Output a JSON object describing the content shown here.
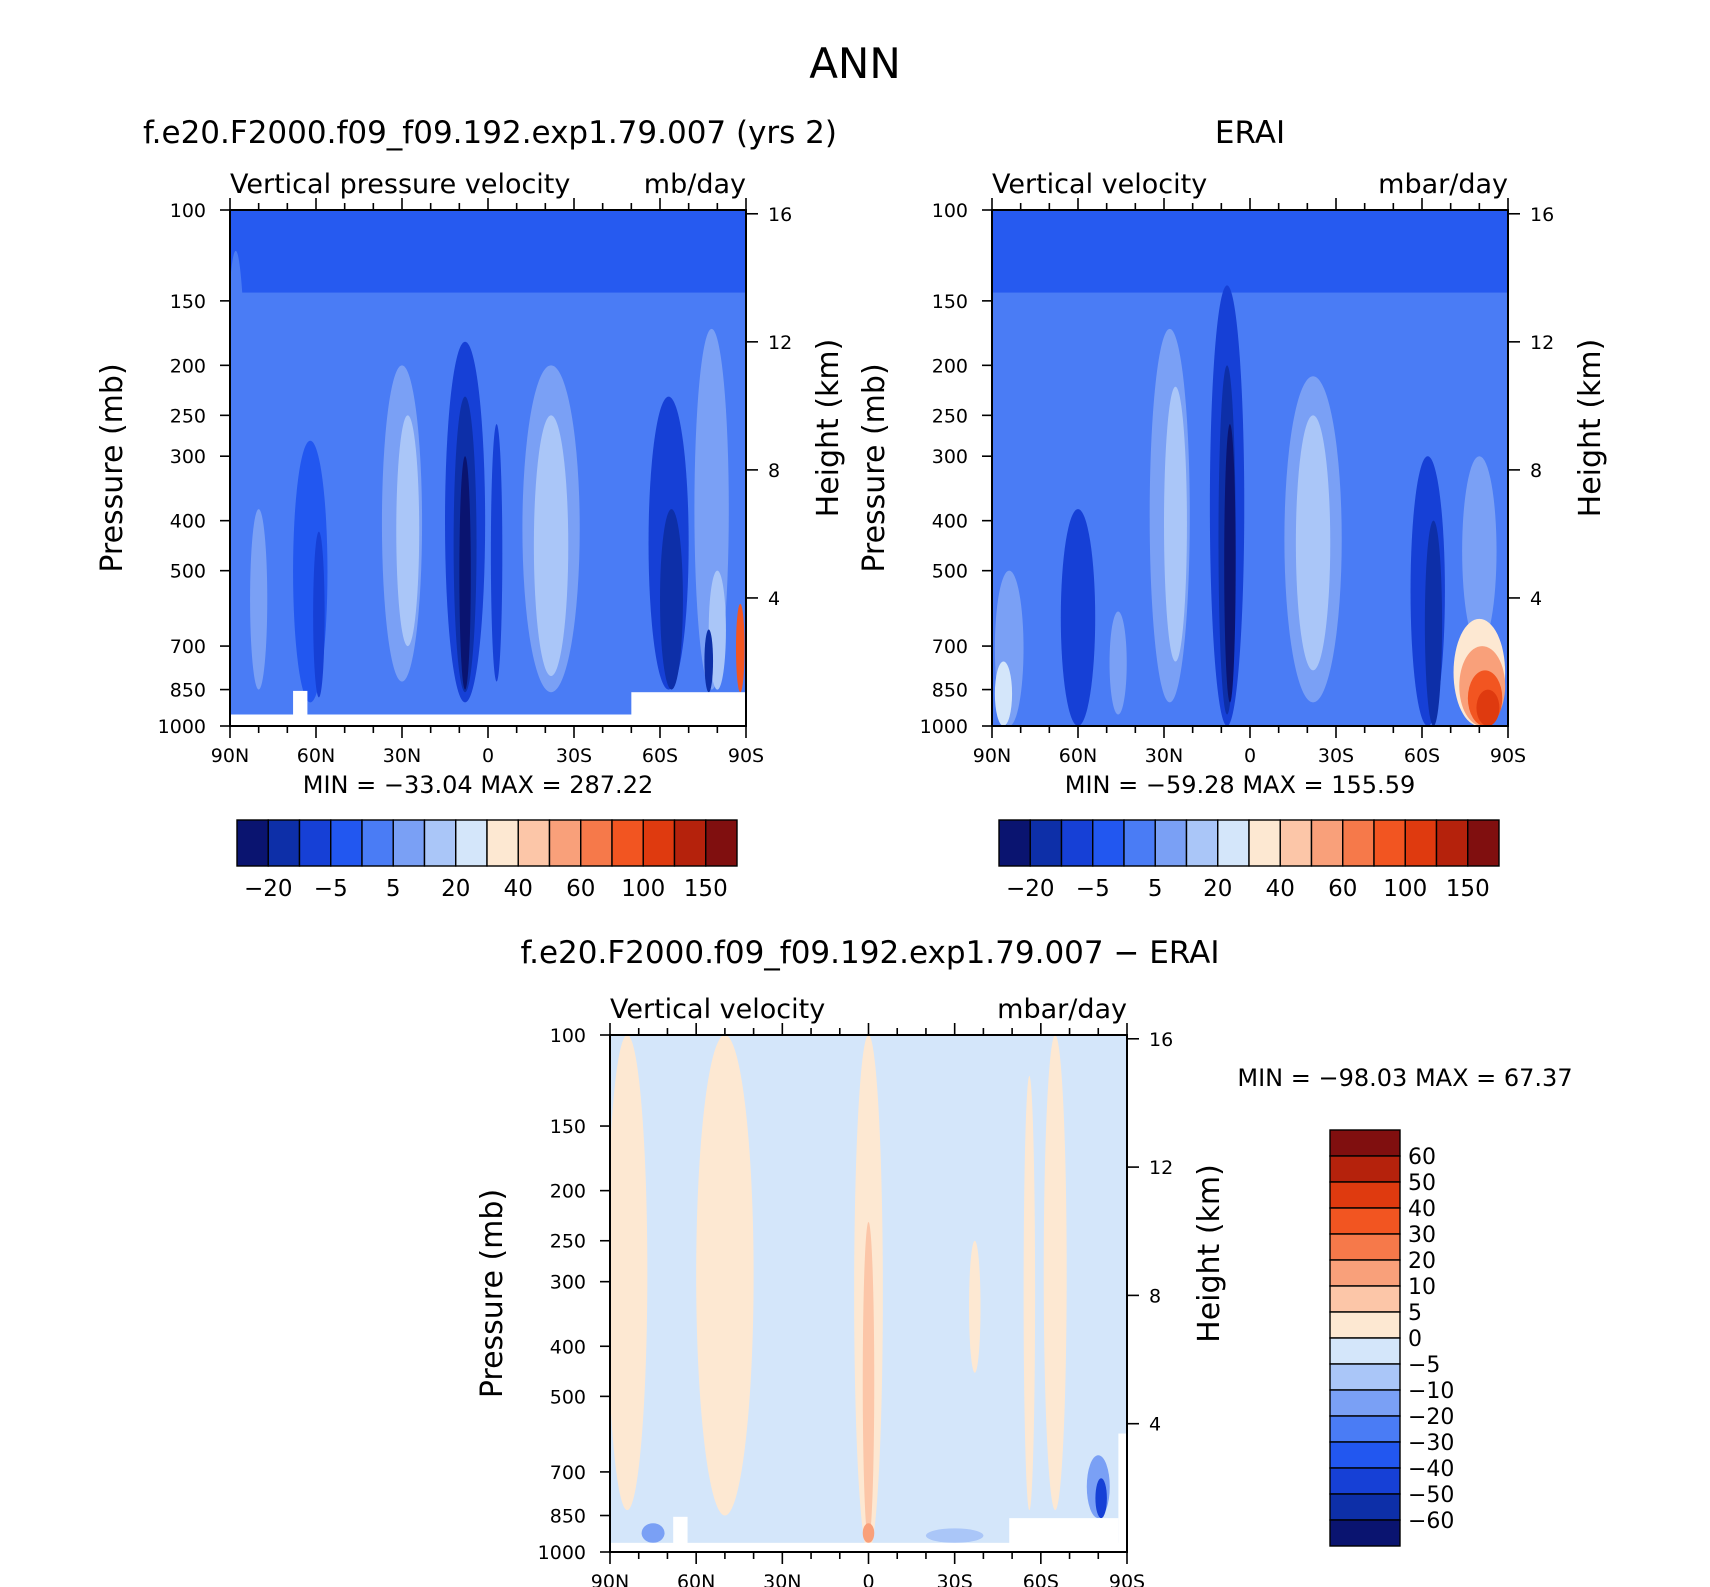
{
  "page_title": "ANN",
  "colors": {
    "palette_main": [
      "#0a1470",
      "#0d2fa8",
      "#1640d6",
      "#2257f0",
      "#4a7cf5",
      "#7aa0f5",
      "#aac6f8",
      "#d4e6fa",
      "#fde8d2",
      "#fcc6a8",
      "#f9a07a",
      "#f6794a",
      "#f25521",
      "#df3a0f",
      "#b5220c",
      "#800f0f"
    ],
    "palette_diff": [
      "#0a1470",
      "#0d2fa8",
      "#1640d6",
      "#2257f0",
      "#4a7cf5",
      "#7aa0f5",
      "#aac6f8",
      "#d4e6fa",
      "#fde8d2",
      "#fcc6a8",
      "#f9a07a",
      "#f6794a",
      "#f25521",
      "#df3a0f",
      "#b5220c",
      "#800f0f"
    ],
    "background_fill": "#4a7cf5",
    "missing": "#ffffff"
  },
  "chart_data": [
    {
      "id": "model",
      "type": "heatmap",
      "title": "f.e20.F2000.f09_f09.192.exp1.79.007 (yrs 2)",
      "left_string": "Vertical pressure velocity",
      "right_string": "mb/day",
      "xlabel": "",
      "ylabel": "Pressure (mb)",
      "y2label": "Height (km)",
      "xticks": [
        "90N",
        "60N",
        "30N",
        "0",
        "30S",
        "60S",
        "90S"
      ],
      "x_lat": [
        90,
        60,
        30,
        0,
        -30,
        -60,
        -90
      ],
      "yticks": [
        100,
        150,
        200,
        250,
        300,
        400,
        500,
        700,
        850,
        1000
      ],
      "y2ticks": [
        16,
        12,
        8,
        4
      ],
      "ylim": [
        1000,
        100
      ],
      "min_max": "MIN = −33.04   MAX = 287.22",
      "colorbar_labels": [
        "−20",
        "−5",
        "5",
        "20",
        "40",
        "60",
        "100",
        "150"
      ],
      "colorbar_levels": [
        -20,
        -10,
        -5,
        0,
        5,
        10,
        20,
        30,
        40,
        50,
        60,
        80,
        100,
        120,
        150
      ],
      "features": [
        {
          "lat": 88,
          "halfwidth": 4,
          "p_top": 120,
          "p_bottom": 1000,
          "level": 4
        },
        {
          "lat": 80,
          "halfwidth": 3,
          "p_top": 380,
          "p_bottom": 850,
          "level": 5
        },
        {
          "lat": 62,
          "halfwidth": 6,
          "p_top": 280,
          "p_bottom": 900,
          "level": 3
        },
        {
          "lat": 59,
          "halfwidth": 2,
          "p_top": 420,
          "p_bottom": 880,
          "level": 2
        },
        {
          "lat": 45,
          "halfwidth": 3,
          "p_top": 300,
          "p_bottom": 800,
          "level": 4
        },
        {
          "lat": 30,
          "halfwidth": 7,
          "p_top": 200,
          "p_bottom": 820,
          "level": 5
        },
        {
          "lat": 28,
          "halfwidth": 4,
          "p_top": 250,
          "p_bottom": 700,
          "level": 6
        },
        {
          "lat": 8,
          "halfwidth": 7,
          "p_top": 180,
          "p_bottom": 900,
          "level": 2
        },
        {
          "lat": 8,
          "halfwidth": 4,
          "p_top": 230,
          "p_bottom": 860,
          "level": 1
        },
        {
          "lat": 8,
          "halfwidth": 2,
          "p_top": 300,
          "p_bottom": 850,
          "level": 0
        },
        {
          "lat": -3,
          "halfwidth": 2,
          "p_top": 260,
          "p_bottom": 820,
          "level": 2
        },
        {
          "lat": -22,
          "halfwidth": 10,
          "p_top": 200,
          "p_bottom": 860,
          "level": 5
        },
        {
          "lat": -22,
          "halfwidth": 6,
          "p_top": 250,
          "p_bottom": 800,
          "level": 6
        },
        {
          "lat": -63,
          "halfwidth": 7,
          "p_top": 230,
          "p_bottom": 850,
          "level": 2
        },
        {
          "lat": -64,
          "halfwidth": 4,
          "p_top": 380,
          "p_bottom": 850,
          "level": 1
        },
        {
          "lat": -78,
          "halfwidth": 6,
          "p_top": 170,
          "p_bottom": 850,
          "level": 5
        },
        {
          "lat": -80,
          "halfwidth": 3,
          "p_top": 500,
          "p_bottom": 850,
          "level": 6
        },
        {
          "lat": -77,
          "halfwidth": 1.5,
          "p_top": 650,
          "p_bottom": 860,
          "level": 1
        },
        {
          "lat": -88,
          "halfwidth": 1.5,
          "p_top": 580,
          "p_bottom": 860,
          "level": 12
        }
      ],
      "missing_regions": [
        {
          "lat_from": 90,
          "lat_to": -90,
          "p_from": 950,
          "p_to": 1000
        },
        {
          "lat_from": 68,
          "lat_to": 63,
          "p_from": 855,
          "p_to": 1000
        },
        {
          "lat_from": -50,
          "lat_to": -90,
          "p_from": 860,
          "p_to": 1000
        }
      ]
    },
    {
      "id": "obs",
      "type": "heatmap",
      "title": "ERAI",
      "left_string": "Vertical velocity",
      "right_string": "mbar/day",
      "ylabel": "Pressure (mb)",
      "y2label": "Height (km)",
      "xticks": [
        "90N",
        "60N",
        "30N",
        "0",
        "30S",
        "60S",
        "90S"
      ],
      "x_lat": [
        90,
        60,
        30,
        0,
        -30,
        -60,
        -90
      ],
      "yticks": [
        100,
        150,
        200,
        250,
        300,
        400,
        500,
        700,
        850,
        1000
      ],
      "y2ticks": [
        16,
        12,
        8,
        4
      ],
      "ylim": [
        1000,
        100
      ],
      "min_max": "MIN = −59.28   MAX = 155.59",
      "colorbar_labels": [
        "−20",
        "−5",
        "5",
        "20",
        "40",
        "60",
        "100",
        "150"
      ],
      "colorbar_levels": [
        -20,
        -10,
        -5,
        0,
        5,
        10,
        20,
        30,
        40,
        50,
        60,
        80,
        100,
        120,
        150
      ],
      "features": [
        {
          "lat": 84,
          "halfwidth": 5,
          "p_top": 500,
          "p_bottom": 1000,
          "level": 5
        },
        {
          "lat": 86,
          "halfwidth": 3,
          "p_top": 750,
          "p_bottom": 1000,
          "level": 7
        },
        {
          "lat": 60,
          "halfwidth": 6,
          "p_top": 380,
          "p_bottom": 1000,
          "level": 2
        },
        {
          "lat": 46,
          "halfwidth": 3,
          "p_top": 600,
          "p_bottom": 950,
          "level": 5
        },
        {
          "lat": 28,
          "halfwidth": 7,
          "p_top": 170,
          "p_bottom": 900,
          "level": 5
        },
        {
          "lat": 26,
          "halfwidth": 4,
          "p_top": 220,
          "p_bottom": 750,
          "level": 6
        },
        {
          "lat": 8,
          "halfwidth": 6,
          "p_top": 140,
          "p_bottom": 1000,
          "level": 2
        },
        {
          "lat": 8,
          "halfwidth": 3,
          "p_top": 200,
          "p_bottom": 950,
          "level": 1
        },
        {
          "lat": 7,
          "halfwidth": 2,
          "p_top": 260,
          "p_bottom": 900,
          "level": 0
        },
        {
          "lat": -22,
          "halfwidth": 10,
          "p_top": 210,
          "p_bottom": 900,
          "level": 5
        },
        {
          "lat": -22,
          "halfwidth": 6,
          "p_top": 250,
          "p_bottom": 780,
          "level": 6
        },
        {
          "lat": -62,
          "halfwidth": 6,
          "p_top": 300,
          "p_bottom": 1000,
          "level": 2
        },
        {
          "lat": -64,
          "halfwidth": 3,
          "p_top": 400,
          "p_bottom": 1000,
          "level": 1
        },
        {
          "lat": -80,
          "halfwidth": 6,
          "p_top": 300,
          "p_bottom": 700,
          "level": 5
        },
        {
          "lat": -80,
          "halfwidth": 9,
          "p_top": 620,
          "p_bottom": 1000,
          "level": 8
        },
        {
          "lat": -81,
          "halfwidth": 8,
          "p_top": 700,
          "p_bottom": 1000,
          "level": 10
        },
        {
          "lat": -82,
          "halfwidth": 6,
          "p_top": 780,
          "p_bottom": 1000,
          "level": 12
        },
        {
          "lat": -83,
          "halfwidth": 4,
          "p_top": 850,
          "p_bottom": 1000,
          "level": 13
        }
      ],
      "missing_regions": []
    },
    {
      "id": "diff",
      "type": "heatmap",
      "title": "f.e20.F2000.f09_f09.192.exp1.79.007 − ERAI",
      "left_string": "Vertical velocity",
      "right_string": "mbar/day",
      "ylabel": "Pressure (mb)",
      "y2label": "Height (km)",
      "xticks": [
        "90N",
        "60N",
        "30N",
        "0",
        "30S",
        "60S",
        "90S"
      ],
      "x_lat": [
        90,
        60,
        30,
        0,
        -30,
        -60,
        -90
      ],
      "yticks": [
        100,
        150,
        200,
        250,
        300,
        400,
        500,
        700,
        850,
        1000
      ],
      "y2ticks": [
        16,
        12,
        8,
        4
      ],
      "ylim": [
        1000,
        100
      ],
      "min_max": "MIN = −98.03   MAX =   67.37",
      "colorbar_labels": [
        "60",
        "50",
        "40",
        "30",
        "20",
        "10",
        "5",
        "0",
        "−5",
        "−10",
        "−20",
        "−30",
        "−40",
        "−50",
        "−60"
      ],
      "colorbar_levels": [
        -60,
        -50,
        -40,
        -30,
        -20,
        -10,
        -5,
        0,
        5,
        10,
        20,
        30,
        40,
        50,
        60
      ],
      "features": [
        {
          "lat": 84,
          "halfwidth": 7,
          "p_top": 100,
          "p_bottom": 830,
          "level": 8
        },
        {
          "lat": 67,
          "halfwidth": 3,
          "p_top": 100,
          "p_bottom": 400,
          "level": 7
        },
        {
          "lat": 50,
          "halfwidth": 10,
          "p_top": 100,
          "p_bottom": 850,
          "level": 8
        },
        {
          "lat": 0,
          "halfwidth": 5,
          "p_top": 100,
          "p_bottom": 1000,
          "level": 8
        },
        {
          "lat": 0,
          "halfwidth": 2,
          "p_top": 230,
          "p_bottom": 950,
          "level": 9
        },
        {
          "lat": -37,
          "halfwidth": 2,
          "p_top": 250,
          "p_bottom": 450,
          "level": 8
        },
        {
          "lat": -56,
          "halfwidth": 2,
          "p_top": 120,
          "p_bottom": 830,
          "level": 8
        },
        {
          "lat": -65,
          "halfwidth": 4,
          "p_top": 100,
          "p_bottom": 830,
          "level": 8
        },
        {
          "lat": -80,
          "halfwidth": 4,
          "p_top": 650,
          "p_bottom": 860,
          "level": 5
        },
        {
          "lat": -81,
          "halfwidth": 2,
          "p_top": 720,
          "p_bottom": 860,
          "level": 2
        },
        {
          "lat": 75,
          "halfwidth": 4,
          "p_top": 880,
          "p_bottom": 960,
          "level": 5
        },
        {
          "lat": 0,
          "halfwidth": 2,
          "p_top": 880,
          "p_bottom": 960,
          "level": 10
        },
        {
          "lat": -30,
          "halfwidth": 10,
          "p_top": 900,
          "p_bottom": 960,
          "level": 6
        }
      ],
      "missing_regions": [
        {
          "lat_from": 90,
          "lat_to": -90,
          "p_from": 960,
          "p_to": 1000
        },
        {
          "lat_from": 68,
          "lat_to": 63,
          "p_from": 855,
          "p_to": 1000
        },
        {
          "lat_from": -49,
          "lat_to": -87,
          "p_from": 860,
          "p_to": 1000
        },
        {
          "lat_from": -87,
          "lat_to": -90,
          "p_from": 590,
          "p_to": 1000
        }
      ]
    }
  ]
}
